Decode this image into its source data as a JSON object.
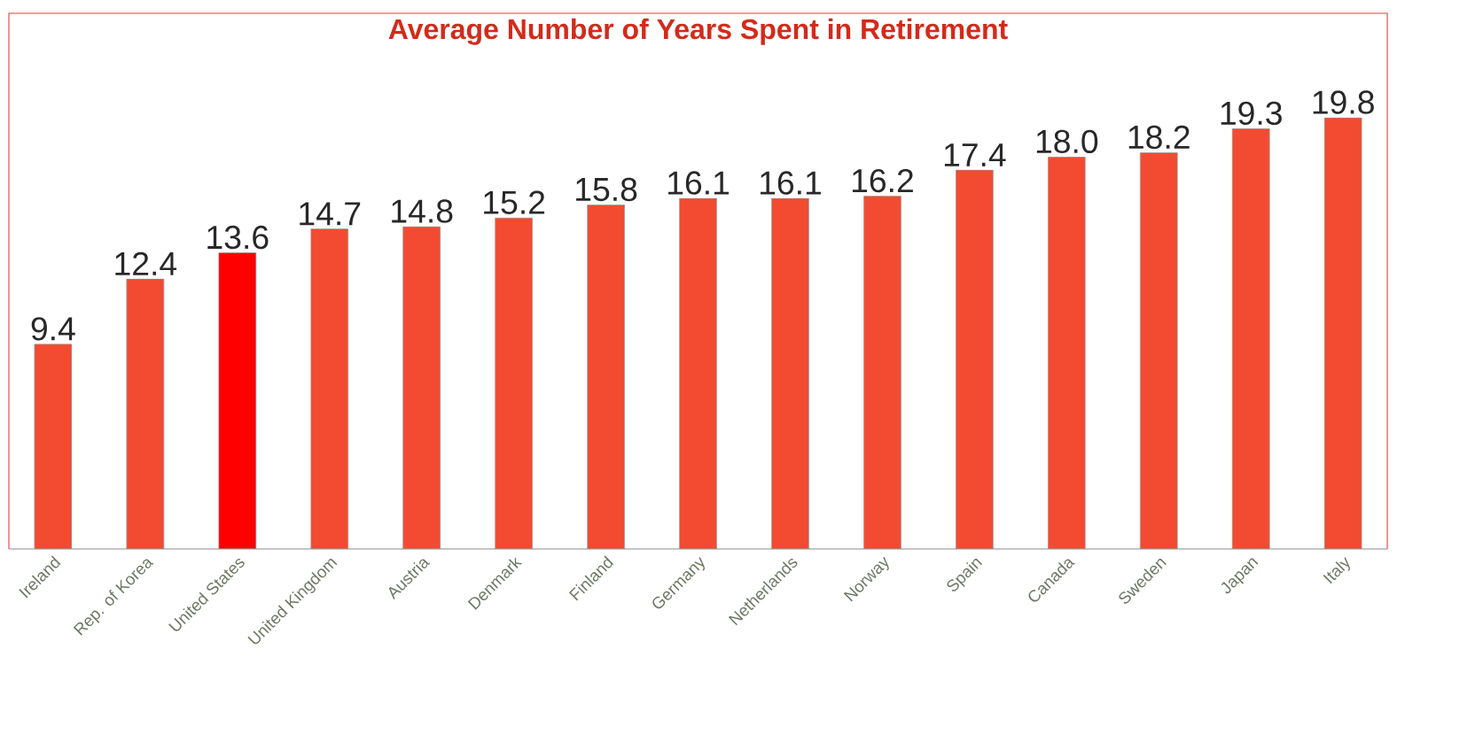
{
  "chart_data": {
    "type": "bar",
    "title": "Average Number of Years Spent in Retirement",
    "categories": [
      "Ireland",
      "Rep. of Korea",
      "United States",
      "United Kingdom",
      "Austria",
      "Denmark",
      "Finland",
      "Germany",
      "Netherlands",
      "Norway",
      "Spain",
      "Canada",
      "Sweden",
      "Japan",
      "Italy"
    ],
    "values": [
      9.4,
      12.4,
      13.6,
      14.7,
      14.8,
      15.2,
      15.8,
      16.1,
      16.1,
      16.2,
      17.4,
      18.0,
      18.2,
      19.3,
      19.8
    ],
    "value_labels": [
      "9.4",
      "12.4",
      "13.6",
      "14.7",
      "14.8",
      "15.2",
      "15.8",
      "16.1",
      "16.1",
      "16.2",
      "17.4",
      "18.0",
      "18.2",
      "19.3",
      "19.8"
    ],
    "colors": [
      "#f24b32",
      "#f24b32",
      "#ff0000",
      "#f24b32",
      "#f24b32",
      "#f24b32",
      "#f24b32",
      "#f24b32",
      "#f24b32",
      "#f24b32",
      "#f24b32",
      "#f24b32",
      "#f24b32",
      "#f24b32",
      "#f24b32"
    ]
  }
}
